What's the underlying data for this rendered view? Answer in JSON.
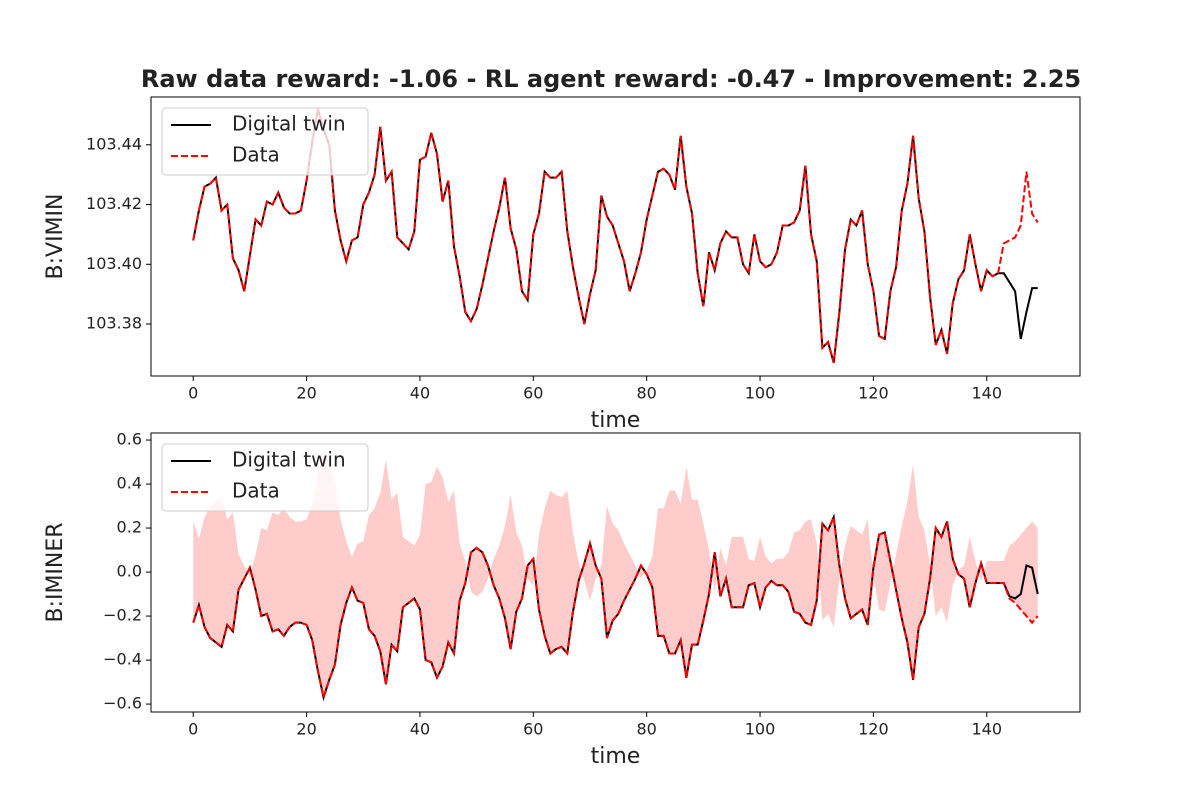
{
  "title": "Raw data reward: -1.06 - RL agent reward: -0.47 - Improvement: 2.25",
  "chart_data": [
    {
      "type": "line",
      "xlabel": "time",
      "ylabel": "B:VIMIN",
      "legend": "upper left",
      "x": [
        0,
        1,
        2,
        3,
        4,
        5,
        6,
        7,
        8,
        9,
        10,
        11,
        12,
        13,
        14,
        15,
        16,
        17,
        18,
        19,
        20,
        21,
        22,
        23,
        24,
        25,
        26,
        27,
        28,
        29,
        30,
        31,
        32,
        33,
        34,
        35,
        36,
        37,
        38,
        39,
        40,
        41,
        42,
        43,
        44,
        45,
        46,
        47,
        48,
        49,
        50,
        51,
        52,
        53,
        54,
        55,
        56,
        57,
        58,
        59,
        60,
        61,
        62,
        63,
        64,
        65,
        66,
        67,
        68,
        69,
        70,
        71,
        72,
        73,
        74,
        75,
        76,
        77,
        78,
        79,
        80,
        81,
        82,
        83,
        84,
        85,
        86,
        87,
        88,
        89,
        90,
        91,
        92,
        93,
        94,
        95,
        96,
        97,
        98,
        99,
        100,
        101,
        102,
        103,
        104,
        105,
        106,
        107,
        108,
        109,
        110,
        111,
        112,
        113,
        114,
        115,
        116,
        117,
        118,
        119,
        120,
        121,
        122,
        123,
        124,
        125,
        126,
        127,
        128,
        129,
        130,
        131,
        132,
        133,
        134,
        135,
        136,
        137,
        138,
        139,
        140,
        141,
        142,
        143,
        144,
        145,
        146,
        147,
        148,
        149
      ],
      "xlim": [
        -7.45,
        156.45
      ],
      "xticks": [
        0,
        20,
        40,
        60,
        80,
        100,
        120,
        140
      ],
      "ylim": [
        103.3626,
        103.456
      ],
      "yticks": [
        103.38,
        {
          "value": 103.4,
          "label": "103.40"
        },
        103.42,
        103.44
      ],
      "series": [
        {
          "name": "Digital twin",
          "color": "#000000",
          "linestyle": "solid",
          "values": [
            103.408,
            103.418,
            103.426,
            103.427,
            103.429,
            103.418,
            103.42,
            103.402,
            103.398,
            103.391,
            103.403,
            103.415,
            103.413,
            103.421,
            103.42,
            103.424,
            103.419,
            103.417,
            103.417,
            103.418,
            103.428,
            103.441,
            103.452,
            103.445,
            103.44,
            103.418,
            103.408,
            103.401,
            103.408,
            103.409,
            103.42,
            103.424,
            103.43,
            103.446,
            103.428,
            103.431,
            103.409,
            103.407,
            103.405,
            103.411,
            103.435,
            103.436,
            103.444,
            103.437,
            103.421,
            103.428,
            103.406,
            103.396,
            103.384,
            103.381,
            103.385,
            103.393,
            103.402,
            103.411,
            103.419,
            103.429,
            103.412,
            103.405,
            103.391,
            103.388,
            103.41,
            103.417,
            103.431,
            103.429,
            103.429,
            103.431,
            103.411,
            103.399,
            103.389,
            103.38,
            103.39,
            103.398,
            103.423,
            103.416,
            103.413,
            103.407,
            103.401,
            103.391,
            103.397,
            103.404,
            103.415,
            103.423,
            103.431,
            103.432,
            103.43,
            103.425,
            103.443,
            103.426,
            103.417,
            103.397,
            103.386,
            103.404,
            103.398,
            103.407,
            103.411,
            103.409,
            103.409,
            103.4,
            103.397,
            103.41,
            103.401,
            103.399,
            103.4,
            103.404,
            103.413,
            103.413,
            103.414,
            103.418,
            103.433,
            103.41,
            103.401,
            103.372,
            103.374,
            103.367,
            103.384,
            103.405,
            103.415,
            103.413,
            103.418,
            103.4,
            103.391,
            103.376,
            103.375,
            103.391,
            103.399,
            103.418,
            103.427,
            103.443,
            103.422,
            103.411,
            103.389,
            103.373,
            103.378,
            103.37,
            103.387,
            103.395,
            103.398,
            103.41,
            103.4,
            103.391,
            103.398,
            103.396,
            103.397,
            103.397,
            103.394,
            103.391,
            103.375,
            103.384,
            103.392,
            103.392
          ]
        },
        {
          "name": "Data",
          "color": "#ff0000",
          "linestyle": "dashed",
          "values": [
            103.408,
            103.418,
            103.426,
            103.427,
            103.429,
            103.418,
            103.42,
            103.402,
            103.398,
            103.391,
            103.403,
            103.415,
            103.413,
            103.421,
            103.42,
            103.424,
            103.419,
            103.417,
            103.417,
            103.418,
            103.428,
            103.441,
            103.452,
            103.445,
            103.44,
            103.418,
            103.408,
            103.401,
            103.408,
            103.409,
            103.42,
            103.424,
            103.43,
            103.446,
            103.428,
            103.431,
            103.409,
            103.407,
            103.405,
            103.411,
            103.435,
            103.436,
            103.444,
            103.437,
            103.421,
            103.428,
            103.406,
            103.396,
            103.384,
            103.381,
            103.385,
            103.393,
            103.402,
            103.411,
            103.419,
            103.429,
            103.412,
            103.405,
            103.391,
            103.388,
            103.41,
            103.417,
            103.431,
            103.429,
            103.429,
            103.431,
            103.411,
            103.399,
            103.389,
            103.38,
            103.39,
            103.398,
            103.423,
            103.416,
            103.413,
            103.407,
            103.401,
            103.391,
            103.397,
            103.404,
            103.415,
            103.423,
            103.431,
            103.432,
            103.43,
            103.425,
            103.443,
            103.426,
            103.417,
            103.397,
            103.386,
            103.404,
            103.398,
            103.407,
            103.411,
            103.409,
            103.409,
            103.4,
            103.397,
            103.41,
            103.401,
            103.399,
            103.4,
            103.404,
            103.413,
            103.413,
            103.414,
            103.418,
            103.433,
            103.41,
            103.401,
            103.372,
            103.374,
            103.367,
            103.384,
            103.405,
            103.415,
            103.413,
            103.418,
            103.4,
            103.391,
            103.376,
            103.375,
            103.391,
            103.399,
            103.418,
            103.427,
            103.443,
            103.422,
            103.411,
            103.389,
            103.373,
            103.378,
            103.37,
            103.387,
            103.395,
            103.398,
            103.41,
            103.4,
            103.391,
            103.398,
            103.396,
            103.397,
            103.407,
            103.408,
            103.409,
            103.413,
            103.431,
            103.417,
            103.414
          ]
        }
      ]
    },
    {
      "type": "line",
      "xlabel": "time",
      "ylabel": "B:IMINER",
      "legend": "upper left",
      "mirror_fill": {
        "series": 1,
        "color": "#ff0000",
        "alpha": 0.2
      },
      "x": [
        0,
        1,
        2,
        3,
        4,
        5,
        6,
        7,
        8,
        9,
        10,
        11,
        12,
        13,
        14,
        15,
        16,
        17,
        18,
        19,
        20,
        21,
        22,
        23,
        24,
        25,
        26,
        27,
        28,
        29,
        30,
        31,
        32,
        33,
        34,
        35,
        36,
        37,
        38,
        39,
        40,
        41,
        42,
        43,
        44,
        45,
        46,
        47,
        48,
        49,
        50,
        51,
        52,
        53,
        54,
        55,
        56,
        57,
        58,
        59,
        60,
        61,
        62,
        63,
        64,
        65,
        66,
        67,
        68,
        69,
        70,
        71,
        72,
        73,
        74,
        75,
        76,
        77,
        78,
        79,
        80,
        81,
        82,
        83,
        84,
        85,
        86,
        87,
        88,
        89,
        90,
        91,
        92,
        93,
        94,
        95,
        96,
        97,
        98,
        99,
        100,
        101,
        102,
        103,
        104,
        105,
        106,
        107,
        108,
        109,
        110,
        111,
        112,
        113,
        114,
        115,
        116,
        117,
        118,
        119,
        120,
        121,
        122,
        123,
        124,
        125,
        126,
        127,
        128,
        129,
        130,
        131,
        132,
        133,
        134,
        135,
        136,
        137,
        138,
        139,
        140,
        141,
        142,
        143,
        144,
        145,
        146,
        147,
        148,
        149
      ],
      "xlim": [
        -7.45,
        156.45
      ],
      "xticks": [
        0,
        20,
        40,
        60,
        80,
        100,
        120,
        140
      ],
      "ylim": [
        -0.636,
        0.632
      ],
      "yticks": [
        {
          "value": -0.6,
          "label": "−0.6"
        },
        {
          "value": -0.4,
          "label": "−0.4"
        },
        {
          "value": -0.2,
          "label": "−0.2"
        },
        {
          "value": 0,
          "label": "0.0"
        },
        0.2,
        0.4,
        0.6
      ],
      "series": [
        {
          "name": "Digital twin",
          "color": "#000000",
          "linestyle": "solid",
          "values": [
            -0.23,
            -0.15,
            -0.25,
            -0.3,
            -0.32,
            -0.34,
            -0.24,
            -0.27,
            -0.08,
            -0.03,
            0.02,
            -0.08,
            -0.2,
            -0.19,
            -0.27,
            -0.26,
            -0.29,
            -0.25,
            -0.23,
            -0.23,
            -0.24,
            -0.31,
            -0.45,
            -0.57,
            -0.49,
            -0.42,
            -0.24,
            -0.14,
            -0.07,
            -0.13,
            -0.14,
            -0.26,
            -0.29,
            -0.36,
            -0.51,
            -0.33,
            -0.36,
            -0.16,
            -0.14,
            -0.12,
            -0.17,
            -0.4,
            -0.41,
            -0.48,
            -0.43,
            -0.32,
            -0.37,
            -0.13,
            -0.05,
            0.09,
            0.11,
            0.09,
            0.03,
            -0.06,
            -0.12,
            -0.21,
            -0.35,
            -0.18,
            -0.12,
            0.03,
            0.06,
            -0.17,
            -0.29,
            -0.37,
            -0.35,
            -0.34,
            -0.37,
            -0.18,
            -0.04,
            0.04,
            0.13,
            0.03,
            -0.03,
            -0.3,
            -0.22,
            -0.19,
            -0.13,
            -0.08,
            -0.03,
            0.03,
            -0.01,
            -0.07,
            -0.29,
            -0.29,
            -0.37,
            -0.37,
            -0.31,
            -0.48,
            -0.33,
            -0.33,
            -0.22,
            -0.1,
            0.09,
            -0.11,
            -0.03,
            -0.16,
            -0.16,
            -0.16,
            -0.06,
            -0.05,
            -0.16,
            -0.07,
            -0.04,
            -0.06,
            -0.06,
            -0.09,
            -0.18,
            -0.19,
            -0.23,
            -0.24,
            -0.13,
            0.22,
            0.19,
            0.25,
            0.03,
            -0.12,
            -0.21,
            -0.19,
            -0.17,
            -0.24,
            0.02,
            0.17,
            0.18,
            0.05,
            -0.08,
            -0.21,
            -0.32,
            -0.49,
            -0.25,
            -0.19,
            -0.03,
            0.2,
            0.16,
            0.23,
            0.06,
            -0.01,
            -0.03,
            -0.16,
            -0.05,
            0.04,
            -0.05,
            -0.05,
            -0.05,
            -0.05,
            -0.11,
            -0.12,
            -0.1,
            0.03,
            0.02,
            -0.1
          ]
        },
        {
          "name": "Data",
          "color": "#ff0000",
          "linestyle": "dashed",
          "values": [
            -0.23,
            -0.15,
            -0.25,
            -0.3,
            -0.32,
            -0.34,
            -0.24,
            -0.27,
            -0.08,
            -0.03,
            0.02,
            -0.08,
            -0.2,
            -0.19,
            -0.27,
            -0.26,
            -0.29,
            -0.25,
            -0.23,
            -0.23,
            -0.24,
            -0.31,
            -0.45,
            -0.57,
            -0.49,
            -0.42,
            -0.24,
            -0.14,
            -0.07,
            -0.13,
            -0.14,
            -0.26,
            -0.29,
            -0.36,
            -0.51,
            -0.33,
            -0.36,
            -0.16,
            -0.14,
            -0.12,
            -0.17,
            -0.4,
            -0.41,
            -0.48,
            -0.43,
            -0.32,
            -0.37,
            -0.13,
            -0.05,
            0.09,
            0.11,
            0.09,
            0.03,
            -0.06,
            -0.12,
            -0.21,
            -0.35,
            -0.18,
            -0.12,
            0.03,
            0.06,
            -0.17,
            -0.29,
            -0.37,
            -0.35,
            -0.34,
            -0.37,
            -0.18,
            -0.04,
            0.04,
            0.13,
            0.03,
            -0.03,
            -0.3,
            -0.22,
            -0.19,
            -0.13,
            -0.08,
            -0.03,
            0.03,
            -0.01,
            -0.07,
            -0.29,
            -0.29,
            -0.37,
            -0.37,
            -0.31,
            -0.48,
            -0.33,
            -0.33,
            -0.22,
            -0.1,
            0.09,
            -0.11,
            -0.03,
            -0.16,
            -0.16,
            -0.16,
            -0.06,
            -0.05,
            -0.16,
            -0.07,
            -0.04,
            -0.06,
            -0.06,
            -0.09,
            -0.18,
            -0.19,
            -0.23,
            -0.24,
            -0.13,
            0.22,
            0.19,
            0.25,
            0.03,
            -0.12,
            -0.21,
            -0.19,
            -0.17,
            -0.24,
            0.02,
            0.17,
            0.18,
            0.05,
            -0.08,
            -0.21,
            -0.32,
            -0.49,
            -0.25,
            -0.19,
            -0.03,
            0.2,
            0.16,
            0.23,
            0.06,
            -0.01,
            -0.03,
            -0.16,
            -0.05,
            0.04,
            -0.05,
            -0.05,
            -0.05,
            -0.05,
            -0.12,
            -0.14,
            -0.17,
            -0.2,
            -0.23,
            -0.2
          ]
        }
      ]
    }
  ]
}
